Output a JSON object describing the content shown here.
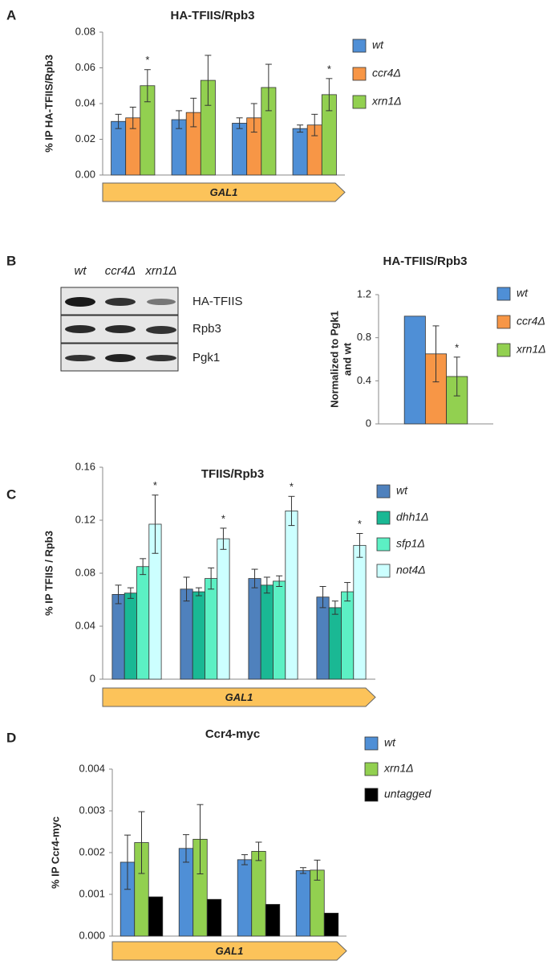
{
  "chart_data": [
    {
      "type": "bar",
      "panel": "A",
      "title": "HA-TFIIS/Rpb3",
      "y_label": "% IP HA-TFIIS/Rpb3",
      "annotation": "GAL1",
      "categories": [
        null,
        null,
        null,
        null
      ],
      "ylim": [
        0,
        0.08
      ],
      "yticks": [
        {
          "value": 0,
          "label": "0.00"
        },
        {
          "value": 0.02,
          "label": "0.02"
        },
        {
          "value": 0.04,
          "label": "0.04"
        },
        {
          "value": 0.06,
          "label": "0.06"
        },
        {
          "value": 0.08,
          "label": "0.08"
        }
      ],
      "series": [
        {
          "name": "wt",
          "color": "#4f8fd6",
          "values": [
            0.03,
            0.031,
            0.029,
            0.026
          ],
          "errors": [
            0.004,
            0.005,
            0.003,
            0.002
          ]
        },
        {
          "name": "ccr4Δ",
          "color": "#f79646",
          "values": [
            0.032,
            0.035,
            0.032,
            0.028
          ],
          "errors": [
            0.006,
            0.008,
            0.008,
            0.006
          ]
        },
        {
          "name": "xrn1Δ",
          "color": "#92d050",
          "values": [
            0.05,
            0.053,
            0.049,
            0.045
          ],
          "errors": [
            0.009,
            0.014,
            0.013,
            0.009
          ],
          "annotations": [
            "*",
            null,
            null,
            "*"
          ]
        }
      ]
    },
    {
      "type": "bar",
      "title": "HA-TFIIS/Rpb3",
      "y_label": [
        "Normalized to Pgk1",
        "and wt"
      ],
      "categories": [
        null
      ],
      "ylim": [
        0,
        1.2
      ],
      "yticks": [
        0,
        0.4,
        0.8,
        1.2
      ],
      "series": [
        {
          "name": "wt",
          "color": "#4f8fd6",
          "values": [
            1.0
          ],
          "errors": [
            null
          ]
        },
        {
          "name": "ccr4Δ",
          "color": "#f79646",
          "values": [
            0.65
          ],
          "errors": [
            0.26
          ]
        },
        {
          "name": "xrn1Δ",
          "color": "#92d050",
          "values": [
            0.44
          ],
          "errors": [
            0.18
          ],
          "annotations": [
            "*"
          ]
        }
      ]
    },
    {
      "type": "bar",
      "panel": "C",
      "title": "TFIIS/Rpb3",
      "y_label": "% IP TFIIS / Rpb3",
      "annotation": "GAL1",
      "categories": [
        null,
        null,
        null,
        null
      ],
      "ylim": [
        0,
        0.16
      ],
      "yticks": [
        0,
        0.04,
        0.08,
        0.12,
        0.16
      ],
      "series": [
        {
          "name": "wt",
          "color": "#4f81bd",
          "values": [
            0.064,
            0.068,
            0.076,
            0.062
          ],
          "errors": [
            0.007,
            0.009,
            0.007,
            0.008
          ]
        },
        {
          "name": "dhh1Δ",
          "color": "#1ab894",
          "values": [
            0.065,
            0.066,
            0.071,
            0.054
          ],
          "errors": [
            0.004,
            0.003,
            0.006,
            0.005
          ]
        },
        {
          "name": "sfp1Δ",
          "color": "#5cf0c4",
          "values": [
            0.085,
            0.076,
            0.074,
            0.066
          ],
          "errors": [
            0.006,
            0.008,
            0.004,
            0.007
          ]
        },
        {
          "name": "not4Δ",
          "color": "#ccffff",
          "values": [
            0.117,
            0.106,
            0.127,
            0.101
          ],
          "errors": [
            0.022,
            0.008,
            0.011,
            0.009
          ],
          "annotations": [
            "*",
            "*",
            "*",
            "*"
          ]
        }
      ]
    },
    {
      "type": "bar",
      "panel": "D",
      "title": "Ccr4-myc",
      "y_label": "% IP Ccr4-myc",
      "annotation": "GAL1",
      "categories": [
        null,
        null,
        null,
        null
      ],
      "ylim": [
        0,
        0.004
      ],
      "yticks": [
        {
          "value": 0,
          "label": "0.000"
        },
        {
          "value": 0.001,
          "label": "0.001"
        },
        {
          "value": 0.002,
          "label": "0.002"
        },
        {
          "value": 0.003,
          "label": "0.003"
        },
        {
          "value": 0.004,
          "label": "0.004"
        }
      ],
      "series": [
        {
          "name": "wt",
          "color": "#4f8fd6",
          "values": [
            0.00177,
            0.0021,
            0.00183,
            0.00157
          ],
          "errors": [
            0.00065,
            0.00033,
            0.00012,
            7e-05
          ]
        },
        {
          "name": "xrn1Δ",
          "color": "#92d050",
          "values": [
            0.00224,
            0.00232,
            0.00203,
            0.00158
          ],
          "errors": [
            0.00074,
            0.00083,
            0.00022,
            0.00024
          ]
        },
        {
          "name": "untagged",
          "color": "#000000",
          "values": [
            0.00094,
            0.00088,
            0.00076,
            0.00055
          ]
        }
      ]
    }
  ],
  "blot": {
    "panel": "B",
    "lanes": [
      "wt",
      "ccr4Δ",
      "xrn1Δ"
    ],
    "rows": [
      "HA-TFIIS",
      "Rpb3",
      "Pgk1"
    ]
  }
}
